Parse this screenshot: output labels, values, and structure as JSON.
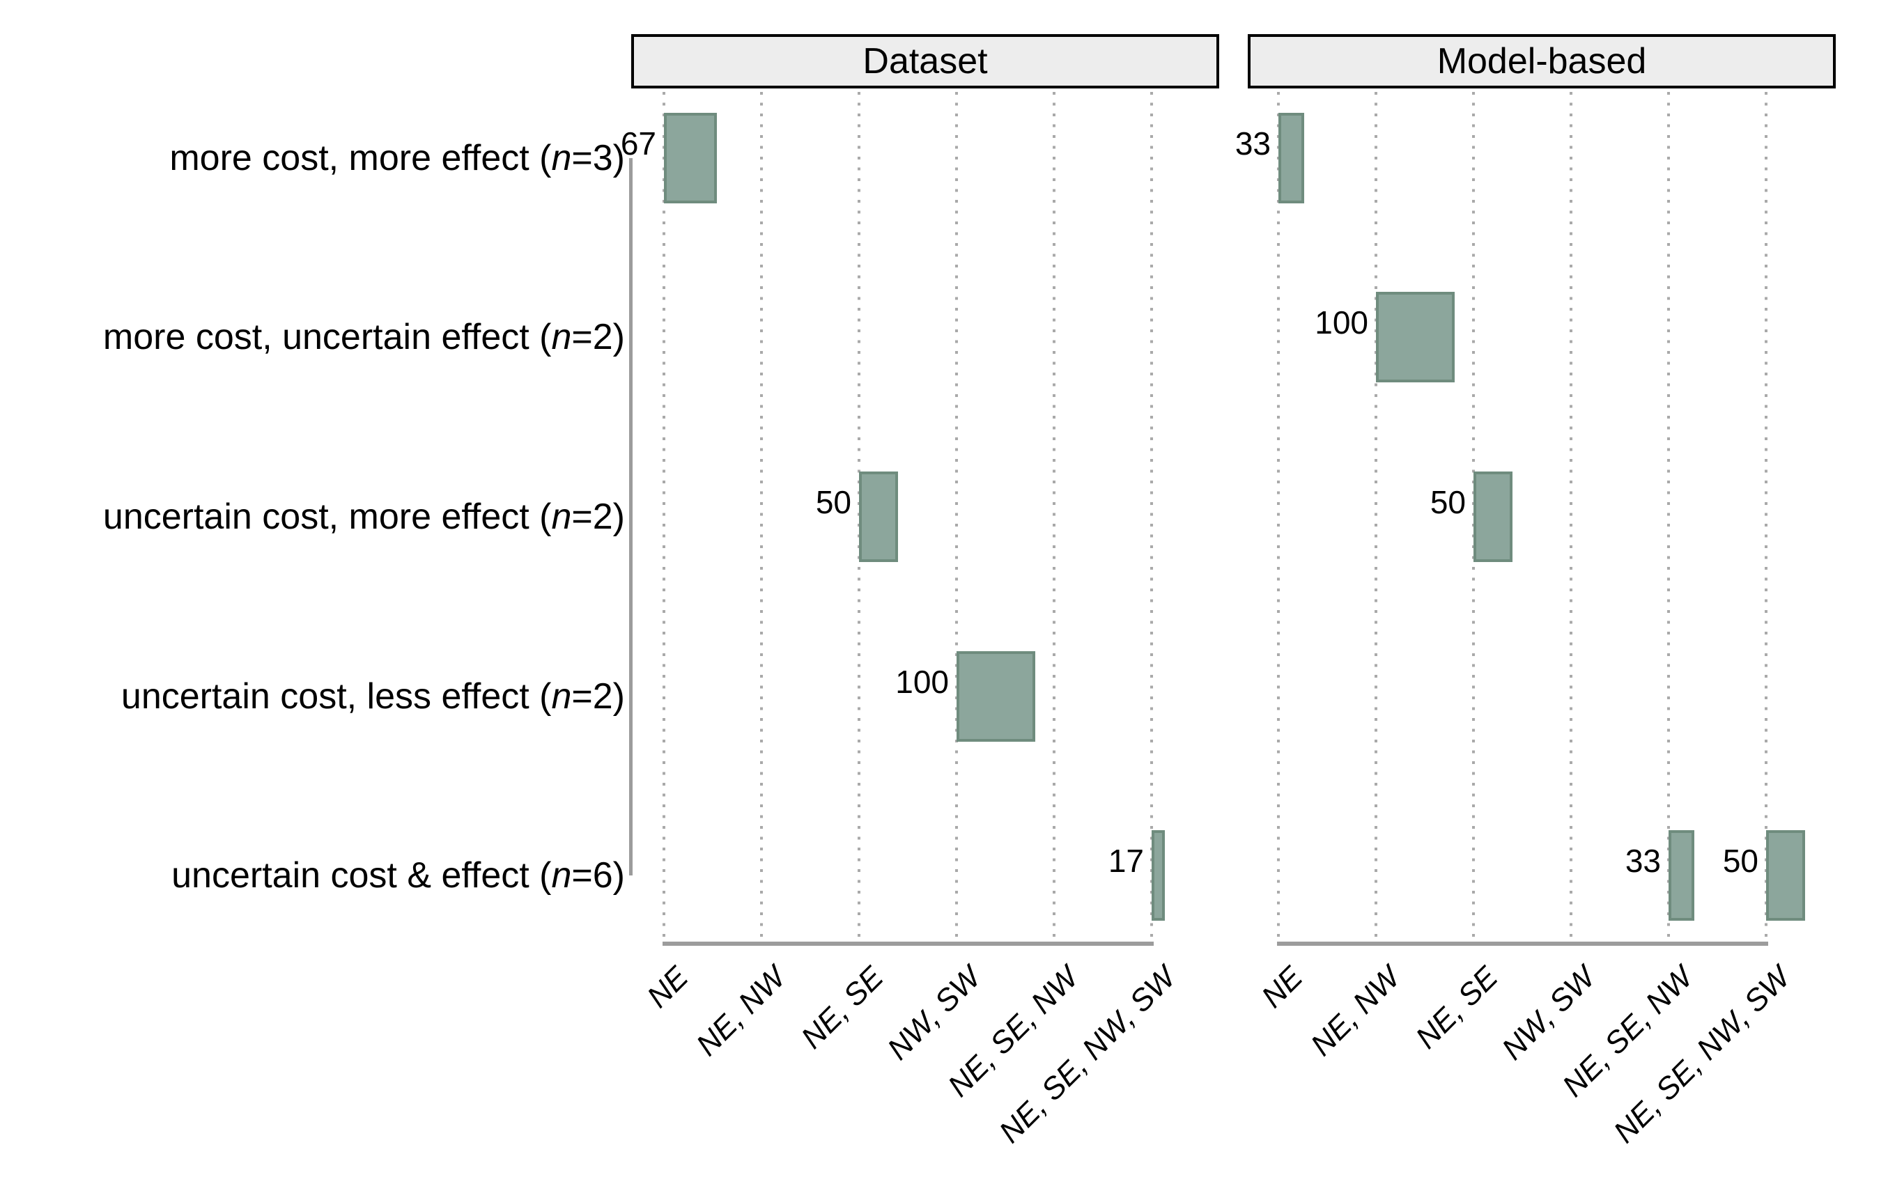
{
  "chart_data": {
    "type": "bar",
    "title": "",
    "xlabel": "",
    "ylabel": "",
    "legend": "none",
    "grid": "dotted-vertical",
    "value_unit": "percent",
    "categories": [
      "NE",
      "NE, NW",
      "NE, SE",
      "NW, SW",
      "NE, SE, NW",
      "NE, SE, NW, SW"
    ],
    "rows": [
      {
        "pre": "more cost, more effect (",
        "nvar": "n",
        "post": "=3)"
      },
      {
        "pre": "more cost, uncertain effect (",
        "nvar": "n",
        "post": "=2)"
      },
      {
        "pre": "uncertain cost, more effect (",
        "nvar": "n",
        "post": "=2)"
      },
      {
        "pre": "uncertain cost, less effect (",
        "nvar": "n",
        "post": "=2)"
      },
      {
        "pre": "uncertain cost & effect (",
        "nvar": "n",
        "post": "=6)"
      }
    ],
    "panels": [
      {
        "title": "Dataset",
        "bars": [
          {
            "row": 0,
            "category": "NE",
            "cat_index": 0,
            "value": 67
          },
          {
            "row": 2,
            "category": "NE, SE",
            "cat_index": 2,
            "value": 50
          },
          {
            "row": 3,
            "category": "NW, SW",
            "cat_index": 3,
            "value": 100
          },
          {
            "row": 4,
            "category": "NE, SE, NW, SW",
            "cat_index": 5,
            "value": 17
          }
        ]
      },
      {
        "title": "Model-based",
        "bars": [
          {
            "row": 0,
            "category": "NE",
            "cat_index": 0,
            "value": 33
          },
          {
            "row": 1,
            "category": "NE, NW",
            "cat_index": 1,
            "value": 100
          },
          {
            "row": 2,
            "category": "NE, SE",
            "cat_index": 2,
            "value": 50
          },
          {
            "row": 4,
            "category": "NE, SE, NW",
            "cat_index": 4,
            "value": 33
          },
          {
            "row": 4,
            "category": "NE, SE, NW, SW",
            "cat_index": 5,
            "value": 50
          }
        ]
      }
    ],
    "colors": {
      "bar_fill": "#8CA69C",
      "bar_stroke": "#6F8C7E",
      "gridline": "#A9A9A9",
      "axis": "#9C9C9C",
      "header_fill": "#EDEDED",
      "header_border": "#000000",
      "text": "#000000",
      "background": "#FFFFFF"
    }
  }
}
